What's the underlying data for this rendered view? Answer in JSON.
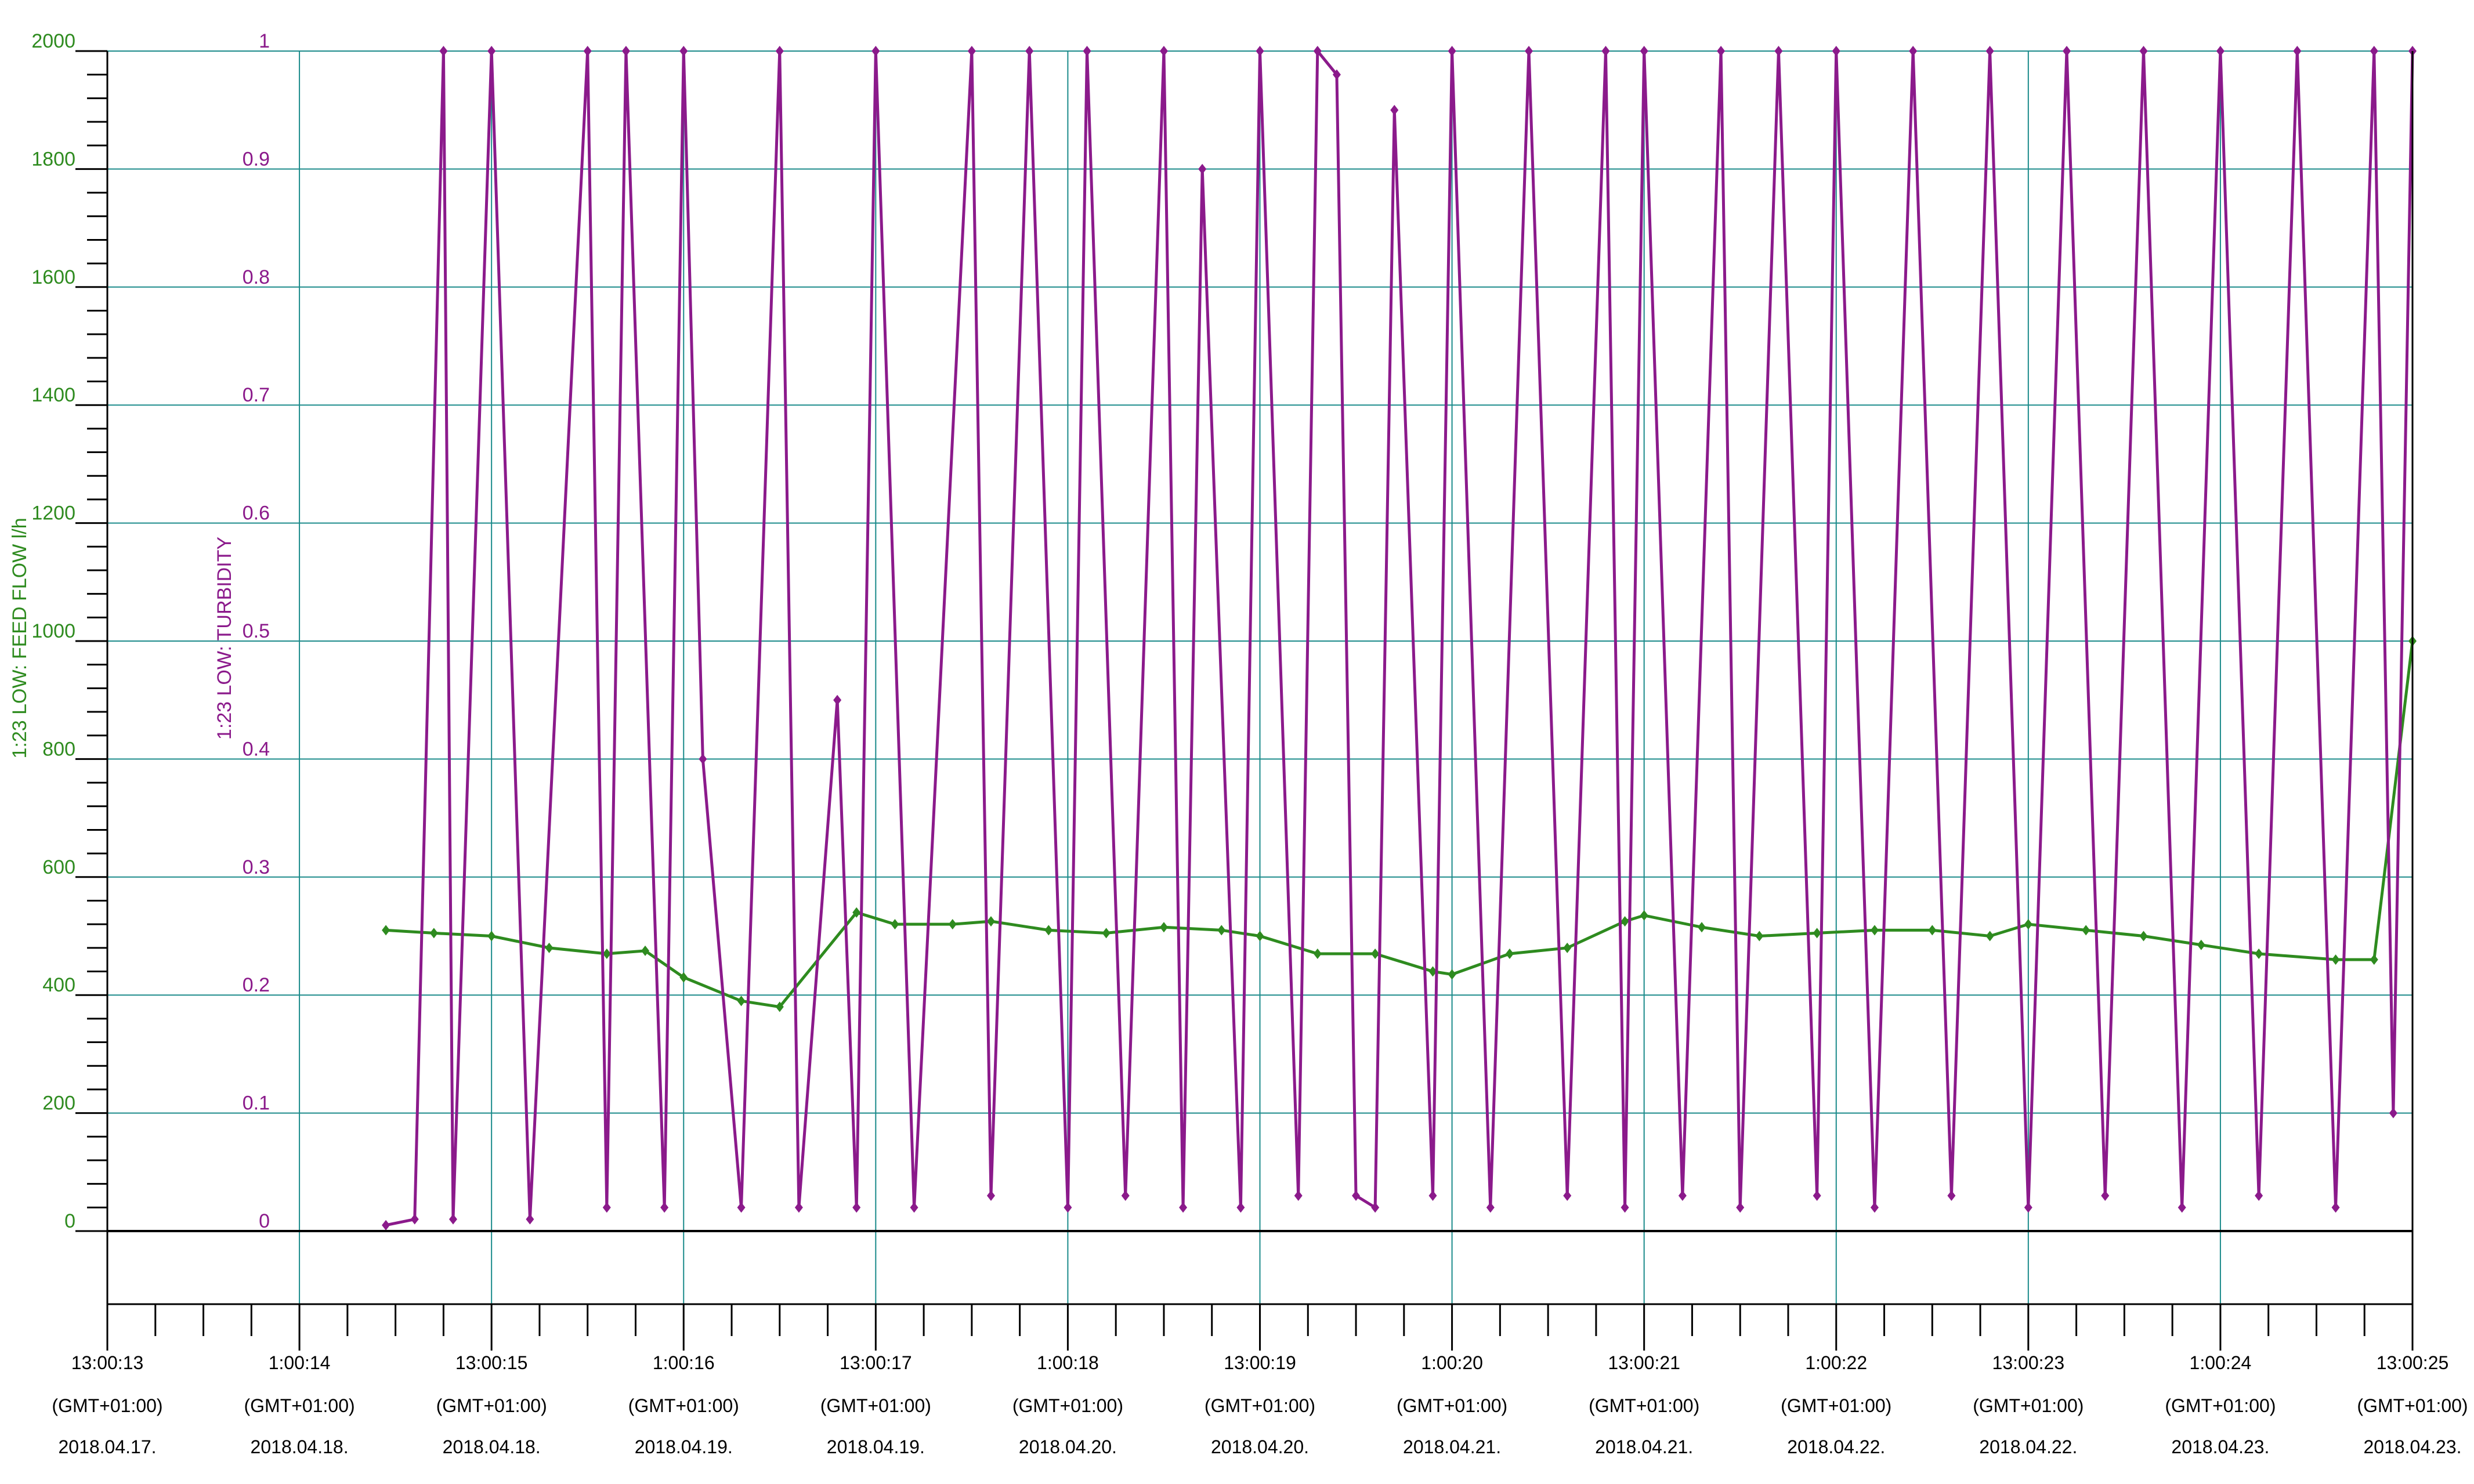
{
  "chart_data": {
    "type": "line",
    "y_left": {
      "label": "1:23 LOW: FEED FLOW l/h",
      "ticks": [
        "0",
        "200",
        "400",
        "600",
        "800",
        "1000",
        "1200",
        "1400",
        "1600",
        "1800",
        "2000"
      ],
      "range": [
        0,
        2000
      ],
      "color": "#2e8b1f"
    },
    "y_right": {
      "label": "1:23 LOW: TURBIDITY",
      "ticks": [
        "0",
        "0.1",
        "0.2",
        "0.3",
        "0.4",
        "0.5",
        "0.6",
        "0.7",
        "0.8",
        "0.9",
        "1"
      ],
      "range": [
        0,
        1
      ],
      "color": "#8b1a8b"
    },
    "x_ticks": [
      {
        "time": "13:00:13",
        "tz": "(GMT+01:00)",
        "date": "2018.04.17."
      },
      {
        "time": "1:00:14",
        "tz": "(GMT+01:00)",
        "date": "2018.04.18."
      },
      {
        "time": "13:00:15",
        "tz": "(GMT+01:00)",
        "date": "2018.04.18."
      },
      {
        "time": "1:00:16",
        "tz": "(GMT+01:00)",
        "date": "2018.04.19."
      },
      {
        "time": "13:00:17",
        "tz": "(GMT+01:00)",
        "date": "2018.04.19."
      },
      {
        "time": "1:00:18",
        "tz": "(GMT+01:00)",
        "date": "2018.04.20."
      },
      {
        "time": "13:00:19",
        "tz": "(GMT+01:00)",
        "date": "2018.04.20."
      },
      {
        "time": "1:00:20",
        "tz": "(GMT+01:00)",
        "date": "2018.04.21."
      },
      {
        "time": "13:00:21",
        "tz": "(GMT+01:00)",
        "date": "2018.04.21."
      },
      {
        "time": "1:00:22",
        "tz": "(GMT+01:00)",
        "date": "2018.04.22."
      },
      {
        "time": "13:00:23",
        "tz": "(GMT+01:00)",
        "date": "2018.04.22."
      },
      {
        "time": "1:00:24",
        "tz": "(GMT+01:00)",
        "date": "2018.04.23."
      },
      {
        "time": "13:00:25",
        "tz": "(GMT+01:00)",
        "date": "2018.04.23."
      }
    ],
    "series": [
      {
        "name": "1:23 LOW: FEED FLOW l/h",
        "axis": "left",
        "color": "#2e8b1f",
        "x": [
          1.45,
          1.7,
          2.0,
          2.3,
          2.6,
          2.8,
          3.0,
          3.3,
          3.5,
          3.9,
          4.1,
          4.4,
          4.6,
          4.9,
          5.2,
          5.5,
          5.8,
          6.0,
          6.3,
          6.6,
          6.9,
          7.0,
          7.3,
          7.6,
          7.9,
          8.0,
          8.3,
          8.6,
          8.9,
          9.2,
          9.5,
          9.8,
          10.0,
          10.3,
          10.6,
          10.9,
          11.2,
          11.6,
          11.8,
          12.0
        ],
        "values": [
          510,
          505,
          500,
          480,
          470,
          475,
          430,
          390,
          380,
          540,
          520,
          520,
          525,
          510,
          505,
          515,
          510,
          500,
          470,
          470,
          440,
          435,
          470,
          480,
          525,
          535,
          515,
          500,
          505,
          510,
          510,
          500,
          520,
          510,
          500,
          485,
          470,
          460,
          460,
          1000
        ]
      },
      {
        "name": "1:23 LOW: TURBIDITY",
        "axis": "right",
        "color": "#8b1a8b",
        "x": [
          1.45,
          1.6,
          1.75,
          1.8,
          2.0,
          2.2,
          2.5,
          2.6,
          2.7,
          2.9,
          3.0,
          3.1,
          3.3,
          3.5,
          3.6,
          3.8,
          3.9,
          4.0,
          4.2,
          4.5,
          4.6,
          4.8,
          5.0,
          5.1,
          5.3,
          5.5,
          5.6,
          5.7,
          5.9,
          6.0,
          6.2,
          6.3,
          6.4,
          6.5,
          6.6,
          6.7,
          6.9,
          7.0,
          7.2,
          7.4,
          7.6,
          7.8,
          7.9,
          8.0,
          8.2,
          8.4,
          8.5,
          8.7,
          8.9,
          9.0,
          9.2,
          9.4,
          9.6,
          9.8,
          10.0,
          10.2,
          10.4,
          10.6,
          10.8,
          11.0,
          11.2,
          11.4,
          11.6,
          11.8,
          11.9,
          12.0
        ],
        "values": [
          0.005,
          0.01,
          1.0,
          0.01,
          1.0,
          0.01,
          1.0,
          0.02,
          1.0,
          0.02,
          1.0,
          0.4,
          0.02,
          1.0,
          0.02,
          0.45,
          0.02,
          1.0,
          0.02,
          1.0,
          0.03,
          1.0,
          0.02,
          1.0,
          0.03,
          1.0,
          0.02,
          0.9,
          0.02,
          1.0,
          0.03,
          1.0,
          0.98,
          0.03,
          0.02,
          0.95,
          0.03,
          1.0,
          0.02,
          1.0,
          0.03,
          1.0,
          0.02,
          1.0,
          0.03,
          1.0,
          0.02,
          1.0,
          0.03,
          1.0,
          0.02,
          1.0,
          0.03,
          1.0,
          0.02,
          1.0,
          0.03,
          1.0,
          0.02,
          1.0,
          0.03,
          1.0,
          0.02,
          1.0,
          0.1,
          1.0
        ]
      }
    ],
    "grid": true,
    "legend": "none"
  }
}
